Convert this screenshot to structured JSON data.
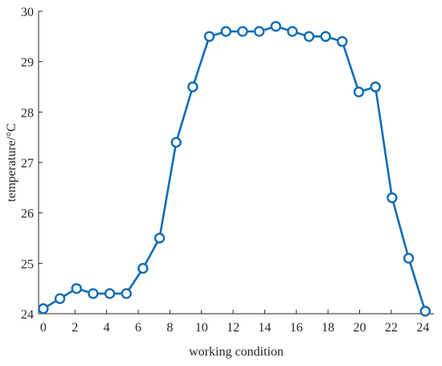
{
  "chart_data": {
    "type": "line",
    "title": "",
    "xlabel": "working condition",
    "ylabel": "temperature/°C",
    "xlim": [
      -0.3,
      24.7
    ],
    "ylim": [
      24,
      30
    ],
    "xticks": [
      "0",
      "2",
      "4",
      "6",
      "8",
      "10",
      "12",
      "14",
      "16",
      "18",
      "20",
      "22",
      "24"
    ],
    "yticks": [
      "24",
      "25",
      "26",
      "27",
      "28",
      "29",
      "30"
    ],
    "grid": false,
    "legend": "none",
    "series": [
      {
        "color": "#0f6cb5",
        "marker": "circle-open",
        "x": [
          0,
          1.05,
          2.1,
          3.15,
          4.2,
          5.25,
          6.3,
          7.35,
          8.4,
          9.45,
          10.5,
          11.55,
          12.6,
          13.65,
          14.7,
          15.75,
          16.8,
          17.85,
          18.9,
          19.95,
          21.0,
          22.05,
          23.1,
          24.15
        ],
        "values": [
          24.1,
          24.3,
          24.5,
          24.4,
          24.4,
          24.4,
          24.9,
          25.5,
          27.4,
          28.5,
          29.5,
          29.6,
          29.6,
          29.6,
          29.7,
          29.6,
          29.5,
          29.5,
          29.4,
          28.4,
          28.5,
          26.3,
          25.1,
          24.05
        ]
      }
    ]
  }
}
